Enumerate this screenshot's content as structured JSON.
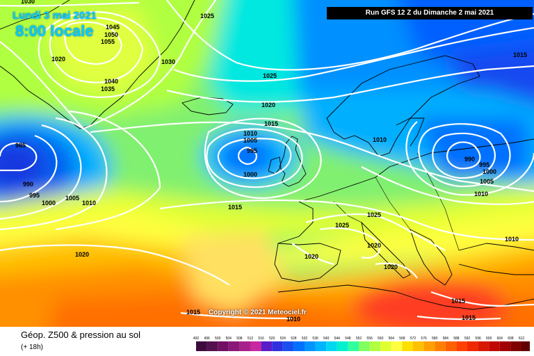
{
  "header": {
    "date_line": "Lundi 3 mai 2021",
    "time_line": "8:00 locale",
    "run_line": "Run GFS 12 Z du Dimanche 2 mai 2021"
  },
  "footer": {
    "title": "Géop. Z500 & pression au sol",
    "subtitle": "(+ 18h)",
    "copyright": "Copyright © 2021 Meteociel.fr"
  },
  "legend": {
    "ticks": [
      "492",
      "496",
      "500",
      "504",
      "508",
      "512",
      "516",
      "520",
      "524",
      "528",
      "532",
      "536",
      "540",
      "544",
      "548",
      "552",
      "556",
      "560",
      "564",
      "568",
      "572",
      "576",
      "580",
      "584",
      "588",
      "592",
      "596",
      "600",
      "604",
      "608",
      "612"
    ],
    "colors": [
      "#3c0a3c",
      "#55104f",
      "#701063",
      "#8a1878",
      "#a8208c",
      "#c828a0",
      "#5a1ec8",
      "#3030e0",
      "#1850f0",
      "#0070ff",
      "#0094ff",
      "#00b4ff",
      "#00d8f0",
      "#00f0d0",
      "#30ffa0",
      "#80ff60",
      "#b0ff40",
      "#e0ff30",
      "#ffff40",
      "#ffe000",
      "#ffc000",
      "#ffa000",
      "#ff8000",
      "#ff6000",
      "#ff4000",
      "#f02800",
      "#d81800",
      "#c00800",
      "#a00000",
      "#800000",
      "#600000"
    ]
  },
  "isobars": [
    {
      "id": "iso-1030-top",
      "label": "1030"
    },
    {
      "id": "iso-1025-top",
      "label": "1025"
    },
    {
      "id": "iso-1045",
      "label": "1045"
    },
    {
      "id": "iso-1050",
      "label": "1050"
    },
    {
      "id": "iso-1055",
      "label": "1055"
    },
    {
      "id": "iso-1020-greenland",
      "label": "1020"
    },
    {
      "id": "iso-1030-greenland",
      "label": "1030"
    },
    {
      "id": "iso-1040",
      "label": "1040"
    },
    {
      "id": "iso-1035",
      "label": "1035"
    },
    {
      "id": "iso-1015-ne",
      "label": "1015"
    },
    {
      "id": "iso-1025-north",
      "label": "1025"
    },
    {
      "id": "iso-1020-north",
      "label": "1020"
    },
    {
      "id": "iso-1015-north",
      "label": "1015"
    },
    {
      "id": "iso-1010-uk",
      "label": "1010"
    },
    {
      "id": "iso-1005-uk",
      "label": "1005"
    },
    {
      "id": "iso-995-uk",
      "label": "995"
    },
    {
      "id": "iso-1000-uk",
      "label": "1000"
    },
    {
      "id": "iso-1010-baltic",
      "label": "1010"
    },
    {
      "id": "iso-985",
      "label": "985"
    },
    {
      "id": "iso-990-west",
      "label": "990"
    },
    {
      "id": "iso-995-west",
      "label": "995"
    },
    {
      "id": "iso-1000-west",
      "label": "1000"
    },
    {
      "id": "iso-1005-west",
      "label": "1005"
    },
    {
      "id": "iso-1010-west",
      "label": "1010"
    },
    {
      "id": "iso-990-east",
      "label": "990"
    },
    {
      "id": "iso-995-east",
      "label": "995"
    },
    {
      "id": "iso-1000-east",
      "label": "1000"
    },
    {
      "id": "iso-1005-east",
      "label": "1005"
    },
    {
      "id": "iso-1010-east",
      "label": "1010"
    },
    {
      "id": "iso-1015-atlantic",
      "label": "1015"
    },
    {
      "id": "iso-1025-europe",
      "label": "1025"
    },
    {
      "id": "iso-1025-france",
      "label": "1025"
    },
    {
      "id": "iso-1020-alps",
      "label": "1020"
    },
    {
      "id": "iso-1020-iberia",
      "label": "1020"
    },
    {
      "id": "iso-1020-italy",
      "label": "1020"
    },
    {
      "id": "iso-1020-southwest",
      "label": "1020"
    },
    {
      "id": "iso-1010-turkey",
      "label": "1010"
    },
    {
      "id": "iso-1015-med",
      "label": "1015"
    },
    {
      "id": "iso-1015-med2",
      "label": "1015"
    },
    {
      "id": "iso-1015-sw",
      "label": "1015"
    },
    {
      "id": "iso-1010-bottom",
      "label": "1010"
    }
  ]
}
